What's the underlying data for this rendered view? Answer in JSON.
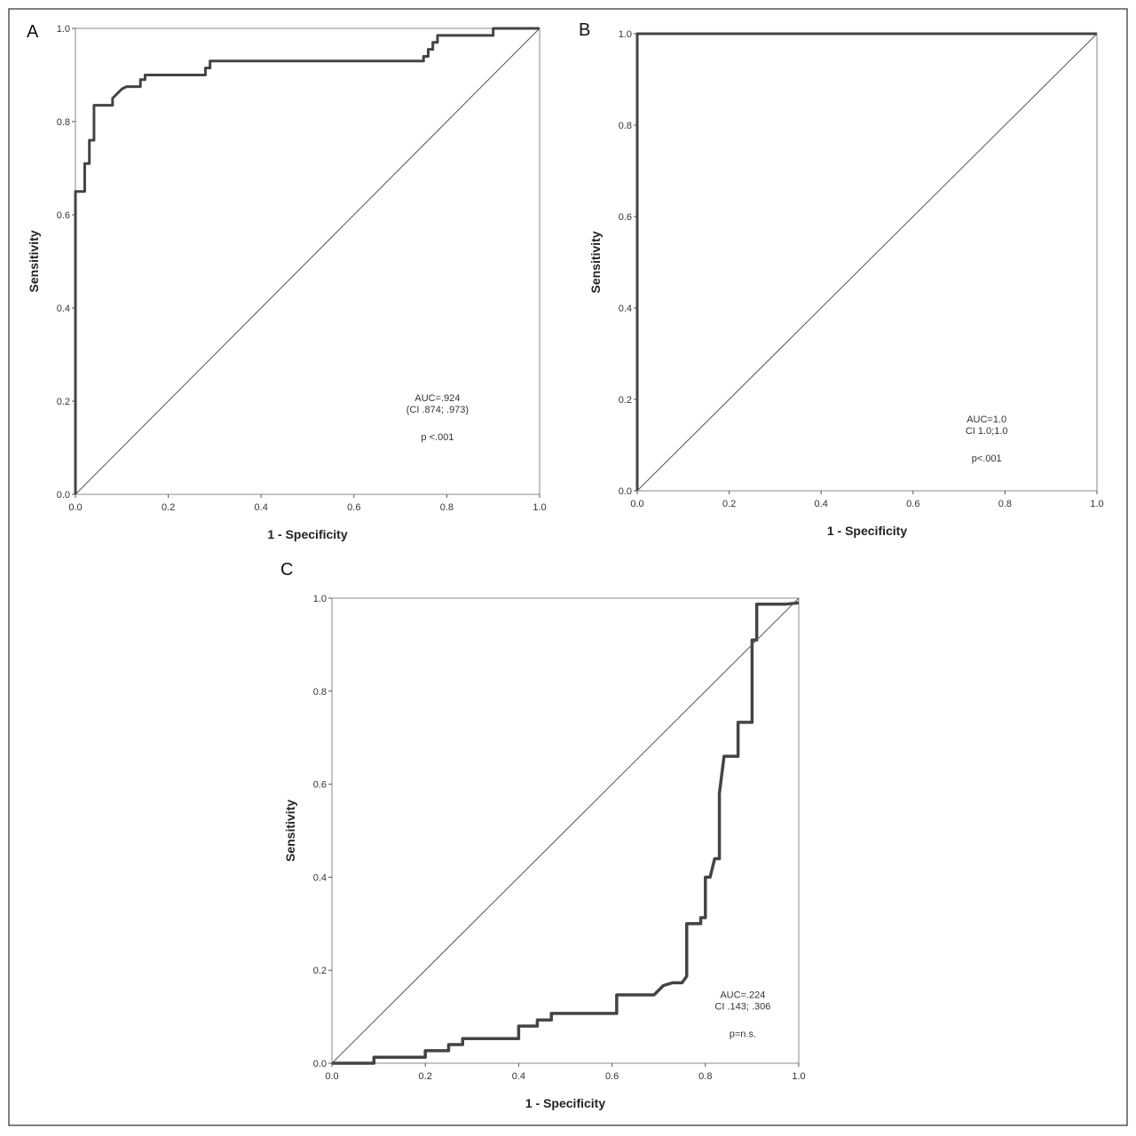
{
  "chart_data": [
    {
      "type": "line",
      "panel": "A",
      "xlabel": "1 - Specificity",
      "ylabel": "Sensitivity",
      "xlim": [
        0,
        1
      ],
      "ylim": [
        0,
        1
      ],
      "xticks": [
        {
          "value": 0,
          "label": "0.0"
        },
        {
          "value": 0.2,
          "label": "0.2"
        },
        {
          "value": 0.4,
          "label": "0.4"
        },
        {
          "value": 0.6,
          "label": "0.6"
        },
        {
          "value": 0.8,
          "label": "0.8"
        },
        {
          "value": 1,
          "label": "1.0"
        }
      ],
      "yticks": [
        {
          "value": 0,
          "label": "0.0"
        },
        {
          "value": 0.2,
          "label": "0.2"
        },
        {
          "value": 0.4,
          "label": "0.4"
        },
        {
          "value": 0.6,
          "label": "0.6"
        },
        {
          "value": 0.8,
          "label": "0.8"
        },
        {
          "value": 1,
          "label": "1.0"
        }
      ],
      "annotations": [
        "AUC=.924",
        "(CI .874; .973)",
        "p <.001"
      ],
      "series": [
        {
          "color": "#444",
          "width": 3,
          "x": [
            0,
            0,
            0.02,
            0.02,
            0.03,
            0.03,
            0.04,
            0.04,
            0.08,
            0.08,
            0.1,
            0.11,
            0.14,
            0.14,
            0.15,
            0.15,
            0.28,
            0.28,
            0.29,
            0.29,
            0.75,
            0.75,
            0.76,
            0.76,
            0.77,
            0.77,
            0.78,
            0.78,
            0.9,
            0.9,
            1
          ],
          "values": [
            0,
            0.65,
            0.65,
            0.71,
            0.71,
            0.76,
            0.76,
            0.835,
            0.835,
            0.85,
            0.87,
            0.875,
            0.875,
            0.89,
            0.89,
            0.9,
            0.9,
            0.915,
            0.915,
            0.93,
            0.93,
            0.94,
            0.94,
            0.955,
            0.955,
            0.97,
            0.97,
            0.985,
            0.985,
            1,
            1
          ]
        },
        {
          "color": "#555",
          "width": 1,
          "x": [
            0,
            1
          ],
          "values": [
            0,
            1
          ]
        }
      ]
    },
    {
      "type": "line",
      "panel": "B",
      "xlabel": "1 - Specificity",
      "ylabel": "Sensitivity",
      "xlim": [
        0,
        1
      ],
      "ylim": [
        0,
        1
      ],
      "xticks": [
        {
          "value": 0,
          "label": "0.0"
        },
        {
          "value": 0.2,
          "label": "0.2"
        },
        {
          "value": 0.4,
          "label": "0.4"
        },
        {
          "value": 0.6,
          "label": "0.6"
        },
        {
          "value": 0.8,
          "label": "0.8"
        },
        {
          "value": 1,
          "label": "1.0"
        }
      ],
      "yticks": [
        {
          "value": 0,
          "label": "0.0"
        },
        {
          "value": 0.2,
          "label": "0.2"
        },
        {
          "value": 0.4,
          "label": "0.4"
        },
        {
          "value": 0.6,
          "label": "0.6"
        },
        {
          "value": 0.8,
          "label": "0.8"
        },
        {
          "value": 1,
          "label": "1.0"
        }
      ],
      "annotations": [
        "AUC=1.0",
        "CI 1.0;1.0",
        "p<.001"
      ],
      "series": [
        {
          "color": "#444",
          "width": 3,
          "x": [
            0,
            0,
            1
          ],
          "values": [
            0,
            1,
            1
          ]
        },
        {
          "color": "#555",
          "width": 1,
          "x": [
            0,
            1
          ],
          "values": [
            0,
            1
          ]
        }
      ]
    },
    {
      "type": "line",
      "panel": "C",
      "xlabel": "1 - Specificity",
      "ylabel": "Sensitivity",
      "xlim": [
        0,
        1
      ],
      "ylim": [
        0,
        1
      ],
      "xticks": [
        {
          "value": 0,
          "label": "0.0"
        },
        {
          "value": 0.2,
          "label": "0.2"
        },
        {
          "value": 0.4,
          "label": "0.4"
        },
        {
          "value": 0.6,
          "label": "0.6"
        },
        {
          "value": 0.8,
          "label": "0.8"
        },
        {
          "value": 1,
          "label": "1.0"
        }
      ],
      "yticks": [
        {
          "value": 0,
          "label": "0.0"
        },
        {
          "value": 0.2,
          "label": "0.2"
        },
        {
          "value": 0.4,
          "label": "0.4"
        },
        {
          "value": 0.6,
          "label": "0.6"
        },
        {
          "value": 0.8,
          "label": "0.8"
        },
        {
          "value": 1,
          "label": "1.0"
        }
      ],
      "annotations": [
        "AUC=.224",
        "CI .143; .306",
        "p=n.s."
      ],
      "series": [
        {
          "color": "#444",
          "width": 3.5,
          "x": [
            0,
            0.09,
            0.09,
            0.2,
            0.2,
            0.25,
            0.25,
            0.28,
            0.28,
            0.4,
            0.4,
            0.44,
            0.44,
            0.47,
            0.47,
            0.61,
            0.61,
            0.69,
            0.71,
            0.73,
            0.75,
            0.76,
            0.76,
            0.79,
            0.79,
            0.8,
            0.8,
            0.81,
            0.82,
            0.83,
            0.83,
            0.84,
            0.87,
            0.87,
            0.9,
            0.9,
            0.91,
            0.91,
            0.97,
            1
          ],
          "values": [
            0,
            0,
            0.013,
            0.013,
            0.027,
            0.027,
            0.04,
            0.04,
            0.053,
            0.053,
            0.08,
            0.08,
            0.093,
            0.093,
            0.107,
            0.107,
            0.147,
            0.147,
            0.167,
            0.173,
            0.173,
            0.187,
            0.3,
            0.3,
            0.313,
            0.313,
            0.4,
            0.4,
            0.44,
            0.44,
            0.58,
            0.66,
            0.66,
            0.733,
            0.733,
            0.91,
            0.91,
            0.987,
            0.987,
            0.99
          ]
        },
        {
          "color": "#555",
          "width": 1,
          "x": [
            0,
            1
          ],
          "values": [
            0,
            1
          ]
        }
      ]
    }
  ]
}
